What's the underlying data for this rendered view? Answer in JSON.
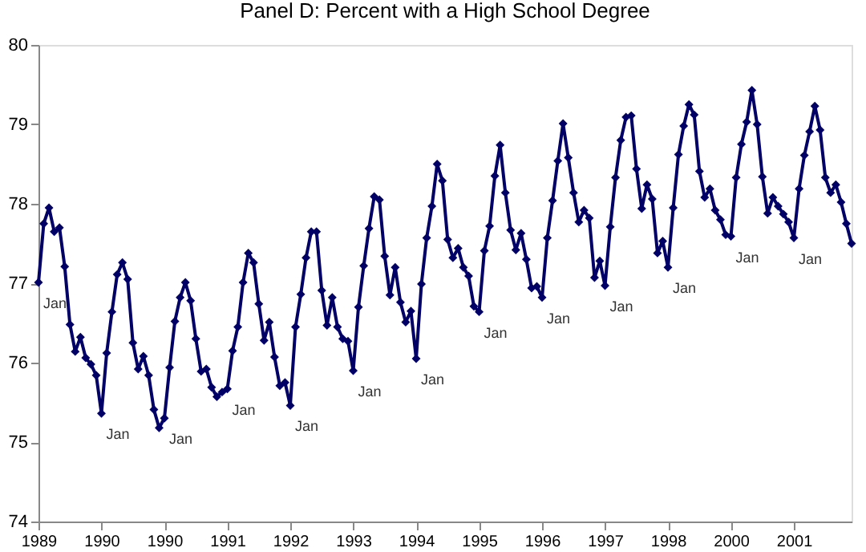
{
  "chart_data": {
    "type": "line",
    "title": "Panel D:  Percent with a High School Degree",
    "categories": [
      "1989",
      null,
      null,
      null,
      null,
      null,
      null,
      null,
      null,
      null,
      null,
      null,
      "1990",
      null,
      null,
      null,
      null,
      null,
      null,
      null,
      null,
      null,
      null,
      null,
      "1990",
      null,
      null,
      null,
      null,
      null,
      null,
      null,
      null,
      null,
      null,
      null,
      "1991",
      null,
      null,
      null,
      null,
      null,
      null,
      null,
      null,
      null,
      null,
      null,
      "1992",
      null,
      null,
      null,
      null,
      null,
      null,
      null,
      null,
      null,
      null,
      null,
      "1993",
      null,
      null,
      null,
      null,
      null,
      null,
      null,
      null,
      null,
      null,
      null,
      "1994",
      null,
      null,
      null,
      null,
      null,
      null,
      null,
      null,
      null,
      null,
      null,
      "1995",
      null,
      null,
      null,
      null,
      null,
      null,
      null,
      null,
      null,
      null,
      null,
      "1996",
      null,
      null,
      null,
      null,
      null,
      null,
      null,
      null,
      null,
      null,
      null,
      "1997",
      null,
      null,
      null,
      null,
      null,
      null,
      null,
      null,
      null,
      null,
      null,
      "1998",
      null,
      null,
      null,
      null,
      null,
      null,
      null,
      null,
      null,
      null,
      null,
      "2000",
      null,
      null,
      null,
      null,
      null,
      null,
      null,
      null,
      null,
      null,
      null,
      "2001",
      null,
      null,
      null,
      null,
      null,
      null,
      null,
      null,
      null,
      null,
      null
    ],
    "series": [
      {
        "color": "#000066",
        "values": [
          77.01,
          77.75,
          77.95,
          77.65,
          77.7,
          77.21,
          76.48,
          76.14,
          76.32,
          76.06,
          75.98,
          75.84,
          75.36,
          76.12,
          76.64,
          77.11,
          77.26,
          77.05,
          76.25,
          75.92,
          76.08,
          75.84,
          75.41,
          75.18,
          75.3,
          75.94,
          76.52,
          76.82,
          77.01,
          76.78,
          76.3,
          75.89,
          75.92,
          75.69,
          75.57,
          75.63,
          75.67,
          76.15,
          76.45,
          77.01,
          77.38,
          77.26,
          76.74,
          76.28,
          76.51,
          76.07,
          75.71,
          75.75,
          75.46,
          76.45,
          76.86,
          77.32,
          77.65,
          77.65,
          76.91,
          76.47,
          76.82,
          76.45,
          76.3,
          76.27,
          75.9,
          76.7,
          77.22,
          77.69,
          78.09,
          78.05,
          77.34,
          76.85,
          77.2,
          76.76,
          76.51,
          76.65,
          76.05,
          76.99,
          77.57,
          77.97,
          78.5,
          78.29,
          77.55,
          77.32,
          77.44,
          77.2,
          77.09,
          76.71,
          76.64,
          77.41,
          77.72,
          78.35,
          78.74,
          78.14,
          77.67,
          77.42,
          77.63,
          77.3,
          76.94,
          76.96,
          76.82,
          77.57,
          78.04,
          78.54,
          79.01,
          78.58,
          78.14,
          77.77,
          77.92,
          77.82,
          77.07,
          77.28,
          76.97,
          77.71,
          78.33,
          78.8,
          79.09,
          79.11,
          78.44,
          77.94,
          78.24,
          78.06,
          77.38,
          77.53,
          77.2,
          77.95,
          78.62,
          78.98,
          79.25,
          79.12,
          78.41,
          78.08,
          78.19,
          77.92,
          77.8,
          77.61,
          77.59,
          78.33,
          78.75,
          79.03,
          79.43,
          79.0,
          78.34,
          77.88,
          78.08,
          77.97,
          77.87,
          77.77,
          77.57,
          78.19,
          78.61,
          78.91,
          79.23,
          78.93,
          78.33,
          78.14,
          78.24,
          78.02,
          77.75,
          77.5
        ]
      }
    ],
    "ylim": [
      74,
      80
    ],
    "yticks": [
      74,
      75,
      76,
      77,
      78,
      79,
      80
    ],
    "grid": false,
    "marker": "diamond",
    "line_style": "solid",
    "annotations": [
      "Jan",
      "Jan",
      "Jan",
      "Jan",
      "Jan",
      "Jan",
      "Jan",
      "Jan",
      "Jan",
      "Jan",
      "Jan",
      "Jan",
      "Jan"
    ]
  }
}
